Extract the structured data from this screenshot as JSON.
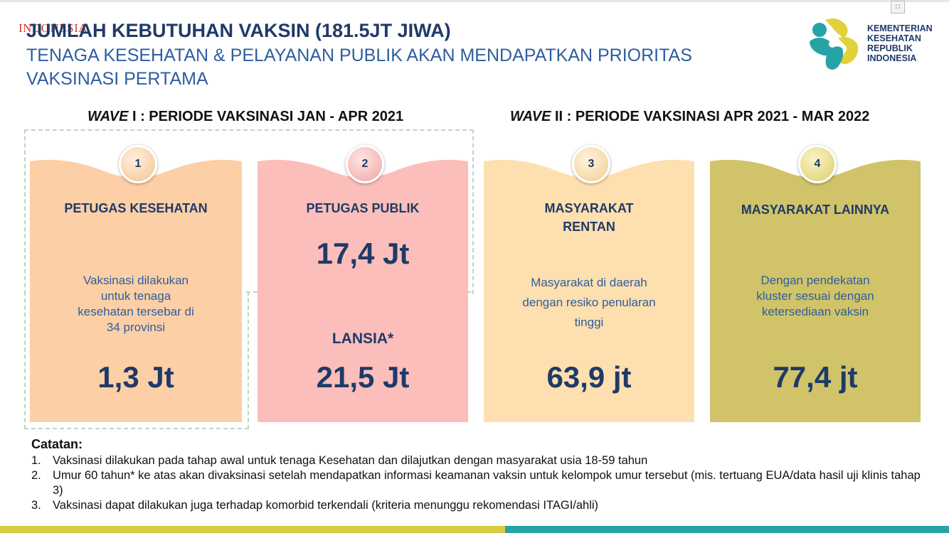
{
  "watermark": "INDONESIA",
  "header": {
    "title": "JUMLAH KEBUTUHAN VAKSIN (181.5JT JIWA)",
    "subtitle": "TENAGA KESEHATAN & PELAYANAN PUBLIK AKAN MENDAPATKAN PRIORITAS VAKSINASI PERTAMA"
  },
  "logo": {
    "lines": [
      "KEMENTERIAN",
      "KESEHATAN",
      "REPUBLIK",
      "INDONESIA"
    ],
    "colors": {
      "teal": "#27a3a6",
      "yellow": "#e3d13a"
    }
  },
  "window_control": {
    "icon": "grid-icon"
  },
  "waves": [
    {
      "italic": "WAVE",
      "rest": " I : PERIODE VAKSINASI JAN - APR 2021"
    },
    {
      "italic": "WAVE",
      "rest": " II : PERIODE VAKSINASI APR 2021 - MAR 2022"
    }
  ],
  "cards": [
    {
      "number": "1",
      "title": "PETUGAS KESEHATAN",
      "description": "Vaksinasi dilakukan untuk tenaga kesehatan tersebar di 34 provinsi",
      "value": "1,3 Jt",
      "color": "#fccfa6"
    },
    {
      "number": "2",
      "title": "PETUGAS PUBLIK",
      "value": "17,4 Jt",
      "title2": "LANSIA*",
      "value2": "21,5 Jt",
      "color": "#fcbebb"
    },
    {
      "number": "3",
      "title": "MASYARAKAT RENTAN",
      "description": "Masyarakat di daerah dengan resiko penularan tinggi",
      "value": "63,9 jt",
      "color": "#fddfb0"
    },
    {
      "number": "4",
      "title": "MASYARAKAT LAINNYA",
      "description": "Dengan pendekatan kluster sesuai dengan ketersediaan vaksin",
      "value": "77,4 jt",
      "color": "#d0c36a"
    }
  ],
  "notes": {
    "title": "Catatan:",
    "items": [
      {
        "num": "1.",
        "text": "Vaksinasi dilakukan pada tahap awal untuk tenaga Kesehatan dan dilajutkan dengan masyarakat usia 18-59 tahun"
      },
      {
        "num": "2.",
        "text": "Umur 60 tahun* ke atas akan divaksinasi setelah mendapatkan informasi keamanan vaksin untuk kelompok umur tersebut (mis. tertuang EUA/data hasil uji klinis tahap 3)"
      },
      {
        "num": "3.",
        "text": "Vaksinasi dapat dilakukan juga terhadap komorbid terkendali (kriteria menunggu rekomendasi ITAGI/ahli)"
      }
    ]
  },
  "bottom_bar": {
    "colors": [
      "#d9cb3f",
      "#27a3a6"
    ]
  }
}
